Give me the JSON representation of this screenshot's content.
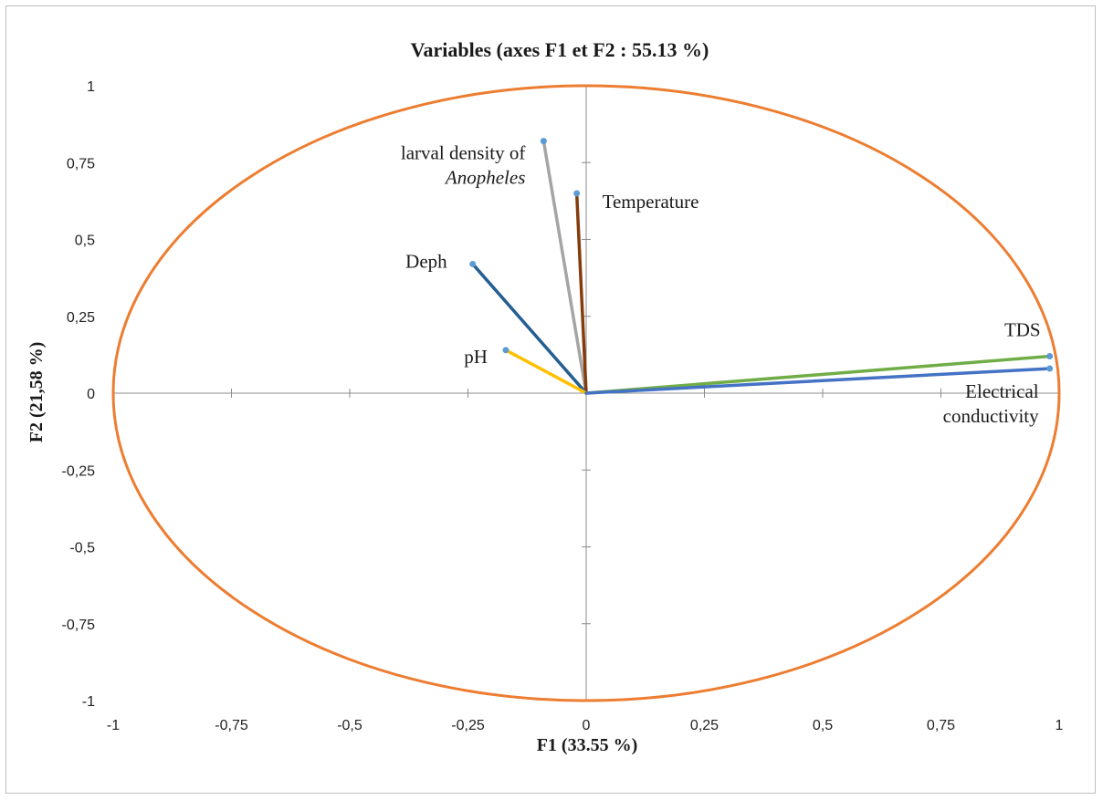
{
  "chart_data": {
    "type": "scatter",
    "subtype": "pca-correlation-circle",
    "title": "Variables (axes F1 et F2 : 55.13 %)",
    "xlabel": "F1 (33.55 %)",
    "ylabel": "F2 (21,58 %)",
    "xlim": [
      -1,
      1
    ],
    "ylim": [
      -1,
      1
    ],
    "x_ticks": [
      -1,
      -0.75,
      -0.5,
      -0.25,
      0,
      0.25,
      0.5,
      0.75,
      1
    ],
    "y_ticks": [
      -1,
      -0.75,
      -0.5,
      -0.25,
      0,
      0.25,
      0.5,
      0.75,
      1
    ],
    "x_tick_labels": [
      "-1",
      "-0,75",
      "-0,5",
      "-0,25",
      "0",
      "0,25",
      "0,5",
      "0,75",
      "1"
    ],
    "y_tick_labels": [
      "-1",
      "-0,75",
      "-0,5",
      "-0,25",
      "0",
      "0,25",
      "0,5",
      "0,75",
      "1"
    ],
    "grid": false,
    "circle_color": "#ED7D31",
    "variables": [
      {
        "label_lines": [
          "larval density of",
          "Anopheles"
        ],
        "x": -0.09,
        "y": 0.82,
        "color": "#A5A5A5"
      },
      {
        "label_lines": [
          "Temperature"
        ],
        "x": -0.02,
        "y": 0.65,
        "color": "#843C0C"
      },
      {
        "label_lines": [
          "Deph"
        ],
        "x": -0.24,
        "y": 0.42,
        "color": "#255E91"
      },
      {
        "label_lines": [
          "pH"
        ],
        "x": -0.17,
        "y": 0.14,
        "color": "#FFC000"
      },
      {
        "label_lines": [
          "TDS"
        ],
        "x": 0.98,
        "y": 0.12,
        "color": "#70AD47"
      },
      {
        "label_lines": [
          "Electrical",
          "conductivity"
        ],
        "x": 0.98,
        "y": 0.08,
        "color": "#4472C4"
      }
    ]
  }
}
